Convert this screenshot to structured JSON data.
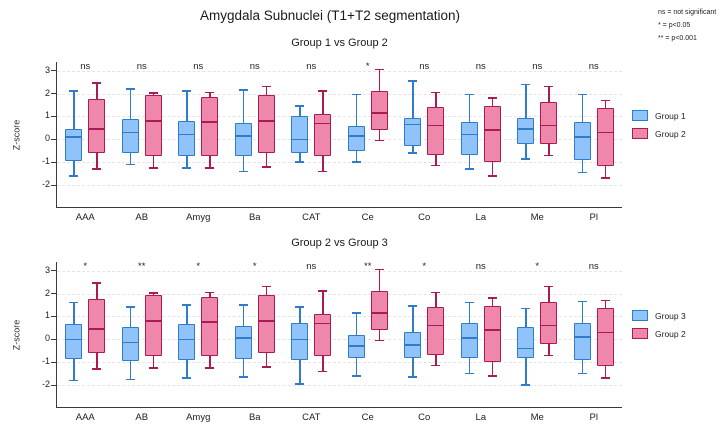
{
  "title": "Amygdala Subnuclei (T1+T2 segmentation)",
  "significance_key": [
    "ns = not significant",
    "* = p<0.05",
    "** = p<0.001"
  ],
  "colors": {
    "blue_fill": "#8FC3FA",
    "blue_border": "#2F7CCB",
    "pink_fill": "#EE87A9",
    "pink_border": "#AC1A56",
    "grid": "#E4E4E4",
    "axis": "#3A3A3A"
  },
  "chart_data": [
    {
      "type": "boxplot",
      "title": "Group 1 vs Group 2",
      "ylabel": "Z-score",
      "yticks": [
        3,
        2,
        1,
        0,
        -1,
        -2
      ],
      "ylim": [
        -2.95,
        3.4
      ],
      "grid": "horizontal-dashed",
      "legend_position": "right",
      "categories": [
        "AAA",
        "AB",
        "Amyg",
        "Ba",
        "CAT",
        "Ce",
        "Co",
        "La",
        "Me",
        "Pl"
      ],
      "significance": [
        "ns",
        "ns",
        "ns",
        "ns",
        "ns",
        "*",
        "ns",
        "ns",
        "ns",
        "ns"
      ],
      "box_format": [
        "whisker_low",
        "q1",
        "median",
        "q3",
        "whisker_high"
      ],
      "series": [
        {
          "name": "Group 1",
          "color": "blue",
          "boxes": [
            [
              -1.6,
              -0.95,
              0.1,
              0.45,
              2.1
            ],
            [
              -1.1,
              -0.6,
              0.3,
              0.9,
              2.2
            ],
            [
              -1.25,
              -0.75,
              0.2,
              0.8,
              2.1
            ],
            [
              -1.4,
              -0.75,
              0.15,
              0.7,
              2.15
            ],
            [
              -1.0,
              -0.6,
              0.0,
              1.0,
              1.45
            ],
            [
              -1.0,
              -0.5,
              0.15,
              0.6,
              1.95
            ],
            [
              -0.6,
              -0.3,
              0.65,
              0.95,
              2.55
            ],
            [
              -1.3,
              -0.7,
              0.2,
              0.75,
              1.95
            ],
            [
              -0.85,
              -0.2,
              0.45,
              0.95,
              2.4
            ],
            [
              -1.45,
              -0.9,
              0.1,
              0.75,
              1.95
            ]
          ]
        },
        {
          "name": "Group 2",
          "color": "pink",
          "boxes": [
            [
              -1.3,
              -0.6,
              0.45,
              1.75,
              2.45
            ],
            [
              -1.25,
              -0.72,
              0.8,
              1.93,
              2.02
            ],
            [
              -1.25,
              -0.75,
              0.75,
              1.85,
              2.05
            ],
            [
              -1.2,
              -0.6,
              0.8,
              1.95,
              2.3
            ],
            [
              -1.4,
              -0.75,
              0.7,
              1.1,
              2.1
            ],
            [
              -0.05,
              0.42,
              1.15,
              2.1,
              3.05
            ],
            [
              -1.15,
              -0.7,
              0.6,
              1.4,
              2.05
            ],
            [
              -1.6,
              -1.0,
              0.4,
              1.45,
              1.8
            ],
            [
              -0.7,
              -0.2,
              0.6,
              1.65,
              2.3
            ],
            [
              -1.7,
              -1.15,
              0.3,
              1.35,
              1.7
            ]
          ]
        }
      ]
    },
    {
      "type": "boxplot",
      "title": "Group 2 vs Group 3",
      "ylabel": "Z-score",
      "yticks": [
        3,
        2,
        1,
        0,
        -1,
        -2
      ],
      "ylim": [
        -2.95,
        3.4
      ],
      "grid": "horizontal-dashed",
      "legend_position": "right",
      "categories": [
        "AAA",
        "AB",
        "Amyg",
        "Ba",
        "CAT",
        "Ce",
        "Co",
        "La",
        "Me",
        "Pl"
      ],
      "significance": [
        "*",
        "**",
        "*",
        "*",
        "ns",
        "**",
        "*",
        "ns",
        "*",
        "ns"
      ],
      "box_format": [
        "whisker_low",
        "q1",
        "median",
        "q3",
        "whisker_high"
      ],
      "series": [
        {
          "name": "Group 3",
          "color": "blue",
          "boxes": [
            [
              -1.8,
              -0.85,
              0.0,
              0.65,
              1.6
            ],
            [
              -1.75,
              -0.95,
              -0.15,
              0.55,
              1.4
            ],
            [
              -1.7,
              -0.9,
              0.0,
              0.65,
              1.5
            ],
            [
              -1.65,
              -0.85,
              0.05,
              0.6,
              1.5
            ],
            [
              -1.95,
              -0.9,
              0.0,
              0.7,
              1.4
            ],
            [
              -1.6,
              -0.8,
              -0.3,
              0.2,
              1.15
            ],
            [
              -1.65,
              -0.8,
              -0.25,
              0.3,
              1.45
            ],
            [
              -1.5,
              -0.8,
              0.05,
              0.7,
              1.6
            ],
            [
              -2.0,
              -0.8,
              -0.4,
              0.55,
              1.35
            ],
            [
              -1.5,
              -0.9,
              0.1,
              0.7,
              1.65
            ]
          ]
        },
        {
          "name": "Group 2",
          "color": "pink",
          "boxes": [
            [
              -1.3,
              -0.6,
              0.45,
              1.75,
              2.45
            ],
            [
              -1.25,
              -0.72,
              0.8,
              1.93,
              2.02
            ],
            [
              -1.25,
              -0.75,
              0.75,
              1.85,
              2.05
            ],
            [
              -1.2,
              -0.6,
              0.8,
              1.95,
              2.3
            ],
            [
              -1.4,
              -0.75,
              0.7,
              1.1,
              2.1
            ],
            [
              -0.05,
              0.42,
              1.15,
              2.1,
              3.05
            ],
            [
              -1.15,
              -0.7,
              0.6,
              1.4,
              2.05
            ],
            [
              -1.6,
              -1.0,
              0.4,
              1.45,
              1.8
            ],
            [
              -0.7,
              -0.2,
              0.6,
              1.65,
              2.3
            ],
            [
              -1.7,
              -1.15,
              0.3,
              1.35,
              1.7
            ]
          ]
        }
      ]
    }
  ]
}
